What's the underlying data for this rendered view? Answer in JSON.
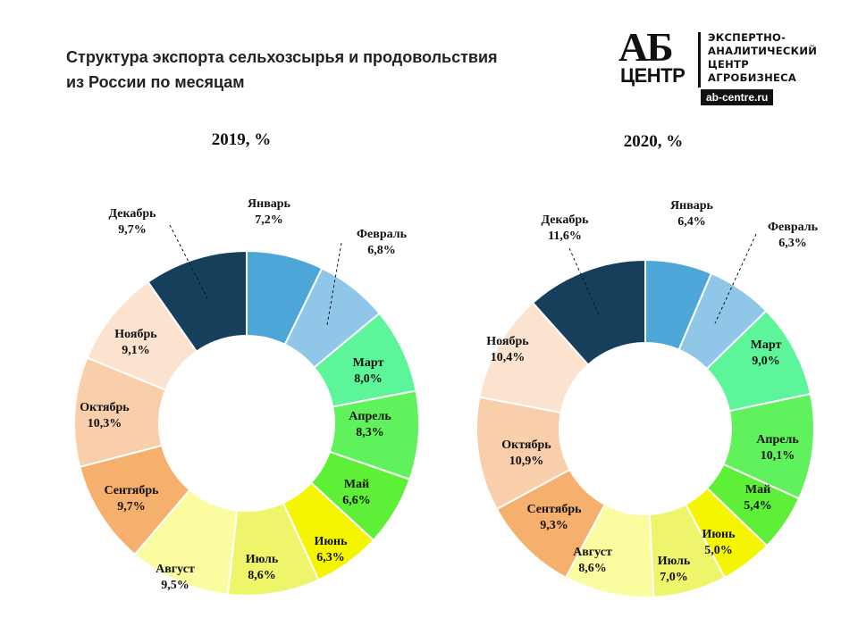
{
  "header": {
    "title_line1": "Структура экспорта сельхозсырья и продовольствия",
    "title_line2": "из России по месяцам"
  },
  "logo": {
    "mark_top": "АБ",
    "mark_bottom": "ЦЕНТР",
    "lines": [
      "ЭКСПЕРТНО-",
      "АНАЛИТИЧЕСКИЙ",
      "ЦЕНТР",
      "АГРОБИЗНЕСА"
    ],
    "url": "ab-centre.ru"
  },
  "colors": {
    "Январь": "#4da6d8",
    "Февраль": "#90c6e8",
    "Март": "#5cf59a",
    "Апрель": "#5ff25c",
    "Май": "#5ef036",
    "Июнь": "#f5f500",
    "Июль": "#eef56a",
    "Август": "#fbfca0",
    "Сентябрь": "#f6b06e",
    "Октябрь": "#f9ceaa",
    "Ноябрь": "#fce3cf",
    "Декабрь": "#163f5c"
  },
  "chart_data": [
    {
      "type": "pie",
      "title": "2019, %",
      "categories": [
        "Январь",
        "Февраль",
        "Март",
        "Апрель",
        "Май",
        "Июнь",
        "Июль",
        "Август",
        "Сентябрь",
        "Октябрь",
        "Ноябрь",
        "Декабрь"
      ],
      "values": [
        7.2,
        6.8,
        8.0,
        8.3,
        6.6,
        6.3,
        8.6,
        9.5,
        9.7,
        10.3,
        9.1,
        9.7
      ],
      "value_labels": [
        "7,2%",
        "6,8%",
        "8,0%",
        "8,3%",
        "6,6%",
        "6,3%",
        "8,6%",
        "9,5%",
        "9,7%",
        "10,3%",
        "9,1%",
        "9,7%"
      ],
      "hole": true
    },
    {
      "type": "pie",
      "title": "2020, %",
      "categories": [
        "Январь",
        "Февраль",
        "Март",
        "Апрель",
        "Май",
        "Июнь",
        "Июль",
        "Август",
        "Сентябрь",
        "Октябрь",
        "Ноябрь",
        "Декабрь"
      ],
      "values": [
        6.4,
        6.3,
        9.0,
        10.1,
        5.4,
        5.0,
        7.0,
        8.6,
        9.3,
        10.9,
        10.4,
        11.6
      ],
      "value_labels": [
        "6,4%",
        "6,3%",
        "9,0%",
        "10,1%",
        "5,4%",
        "5,0%",
        "7,0%",
        "8,6%",
        "9,3%",
        "10,9%",
        "10,4%",
        "11,6%"
      ],
      "hole": true
    }
  ]
}
